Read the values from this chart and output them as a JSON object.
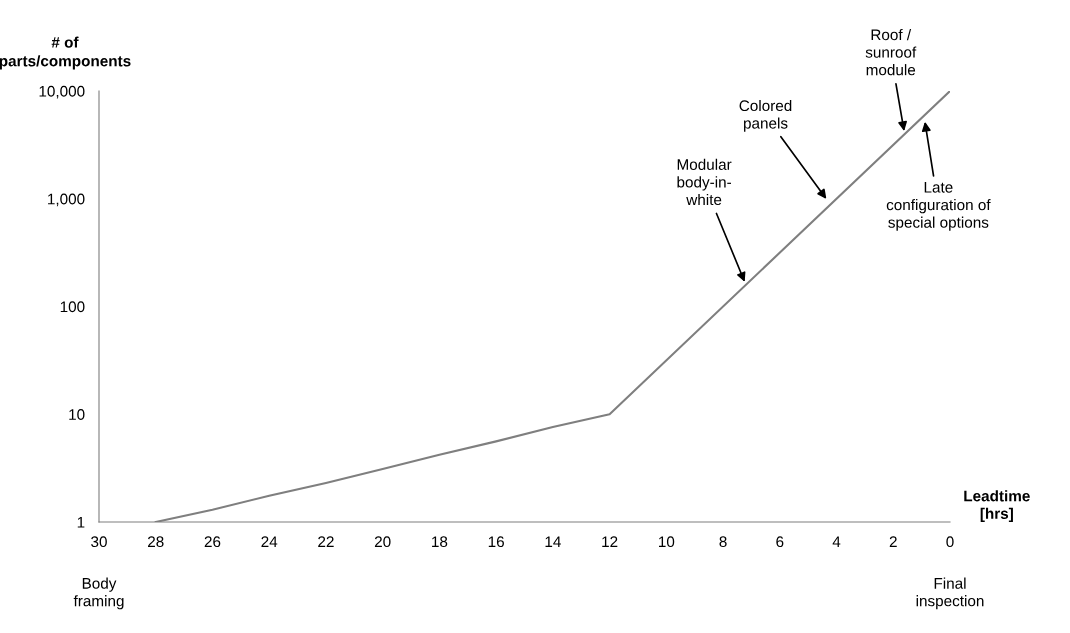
{
  "chart_data": {
    "type": "line",
    "xlabel": "Leadtime\n[hrs]",
    "ylabel": "# of\nparts/components",
    "x": [
      28,
      26,
      24,
      22,
      20,
      18,
      16,
      14,
      12,
      0
    ],
    "series": [
      {
        "color": "#7f7f7f",
        "values": [
          1,
          1.3,
          1.75,
          2.3,
          3.1,
          4.2,
          5.6,
          7.6,
          10,
          10000
        ]
      }
    ],
    "log": "y",
    "xlim": [
      30,
      0
    ],
    "ylim": [
      1,
      10000
    ],
    "xticks": [
      30,
      28,
      26,
      24,
      22,
      20,
      18,
      16,
      14,
      12,
      10,
      8,
      6,
      4,
      2,
      0
    ],
    "yticks": [
      {
        "value": 1,
        "label": "1"
      },
      {
        "value": 10,
        "label": "10"
      },
      {
        "value": 100,
        "label": "100"
      },
      {
        "value": 1000,
        "label": "1,000"
      },
      {
        "value": 10000,
        "label": "10,000"
      }
    ],
    "grid": false,
    "marker": "none",
    "line_style": "solid",
    "annotations": [
      {
        "text": "Modular\nbody-in-\nwhite",
        "x": 7.2,
        "y": 160
      },
      {
        "text": "Colored\npanels",
        "x": 4.3,
        "y": 950
      },
      {
        "text": "Roof /\nsunroof\nmodule",
        "x": 1.6,
        "y": 4000
      },
      {
        "text": "Late\nconfiguration of\nspecial options",
        "x": 0.9,
        "y": 5500
      },
      "Body\nframing",
      "Final\ninspection"
    ]
  }
}
